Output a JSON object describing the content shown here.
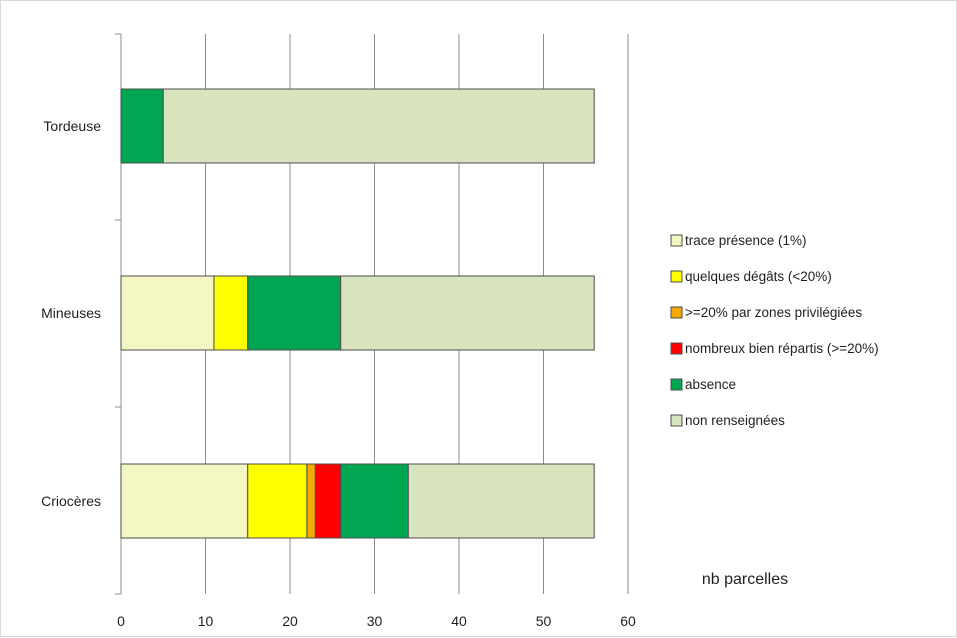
{
  "chart_data": {
    "type": "bar",
    "orientation": "horizontal",
    "stacked": true,
    "categories": [
      "Tordeuse",
      "Mineuses",
      "Criocères"
    ],
    "series": [
      {
        "name": "trace présence (1%)",
        "color": "#f4f6c3",
        "values": [
          0,
          11,
          15
        ]
      },
      {
        "name": "quelques dégâts (<20%)",
        "color": "#ffff00",
        "values": [
          0,
          4,
          7
        ]
      },
      {
        "name": ">=20% par zones privilégiées",
        "color": "#f5a800",
        "values": [
          0,
          0,
          1
        ]
      },
      {
        "name": "nombreux bien répartis (>=20%)",
        "color": "#ff0000",
        "values": [
          0,
          0,
          3
        ]
      },
      {
        "name": "absence",
        "color": "#00a651",
        "values": [
          5,
          11,
          8
        ]
      },
      {
        "name": "non renseignées",
        "color": "#d7e4bd",
        "values": [
          51,
          30,
          22
        ]
      }
    ],
    "xlim": [
      0,
      60
    ],
    "xticks": [
      "0",
      "10",
      "20",
      "30",
      "40",
      "50",
      "60"
    ],
    "xlabel": "nb parcelles",
    "grid": true,
    "legend_position": "right"
  }
}
